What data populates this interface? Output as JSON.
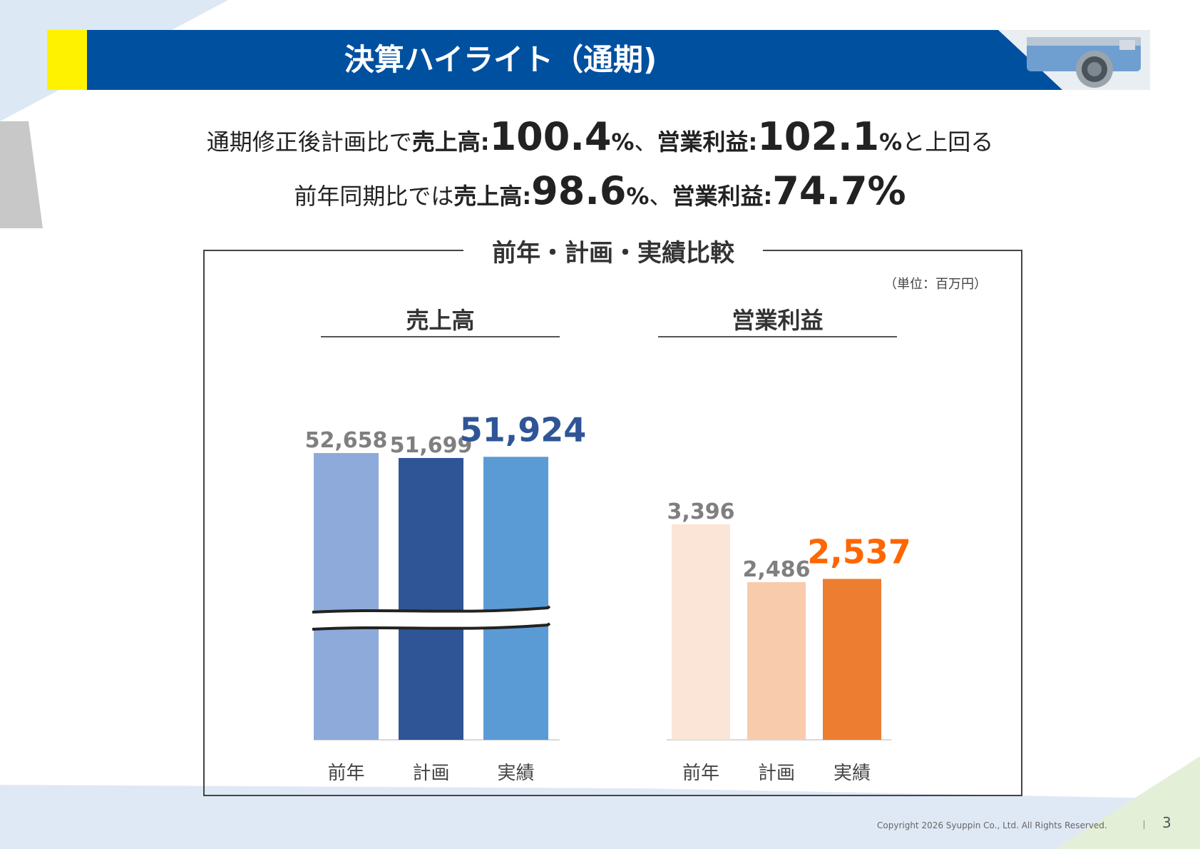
{
  "header": {
    "title": "決算ハイライト（通期)"
  },
  "headline": {
    "line1": {
      "prefix": "通期修正後計画比で",
      "sales_label": "売上高:",
      "sales_value": "100.4",
      "pct1": "%",
      "sep": "、",
      "op_label": "営業利益:",
      "op_value": "102.1",
      "pct2": "%",
      "suffix": "と上回る"
    },
    "line2": {
      "prefix": "前年同期比では",
      "sales_label": "売上高:",
      "sales_value": "98.6",
      "pct1": "%",
      "sep": "、",
      "op_label": "営業利益:",
      "op_value": "74.7%"
    }
  },
  "comparison": {
    "title": "前年・計画・実績比較",
    "unit": "（単位：百万円）"
  },
  "chart_data": [
    {
      "type": "bar",
      "title": "売上高",
      "categories": [
        "前年",
        "計画",
        "実績"
      ],
      "values": [
        52658,
        51699,
        51924
      ],
      "labels": [
        "52,658",
        "51,699",
        "51,924"
      ],
      "colors": [
        "#8eaadb",
        "#2f5597",
        "#5b9bd5"
      ],
      "label_colors": [
        "#7f7f7f",
        "#7f7f7f",
        "#2f5597"
      ],
      "axis_break": true
    },
    {
      "type": "bar",
      "title": "営業利益",
      "categories": [
        "前年",
        "計画",
        "実績"
      ],
      "values": [
        3396,
        2486,
        2537
      ],
      "labels": [
        "3,396",
        "2,486",
        "2,537"
      ],
      "colors": [
        "#fbe5d6",
        "#f8cbad",
        "#ed7d31"
      ],
      "label_colors": [
        "#7f7f7f",
        "#7f7f7f",
        "#ff6600"
      ],
      "axis_break": false
    }
  ],
  "footer": {
    "copyright": "Copyright 2026 Syuppin Co., Ltd. All Rights Reserved.",
    "page": "3"
  }
}
